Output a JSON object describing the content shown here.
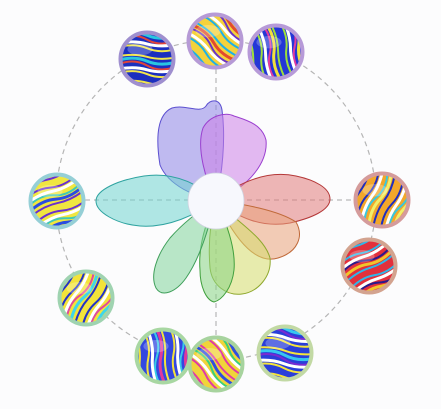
{
  "diagram": {
    "guide_ring_color": "#b5b5b5",
    "axis_color": "#a9a9a9",
    "hub_color": "#f7f8fd",
    "petals": [
      {
        "name": "petal-violet-upper-left",
        "fill": "#8c84e6",
        "stroke": "#5b4fd0",
        "opacity": 0.55
      },
      {
        "name": "petal-magenta-upper-right",
        "fill": "#cc7fe8",
        "stroke": "#9a3fcf",
        "opacity": 0.55
      },
      {
        "name": "petal-red-right",
        "fill": "#e07a7a",
        "stroke": "#b43838",
        "opacity": 0.55
      },
      {
        "name": "petal-orange-lower-right",
        "fill": "#e9a27a",
        "stroke": "#c06a3a",
        "opacity": 0.55
      },
      {
        "name": "petal-yellow-bottom",
        "fill": "#d6dc6c",
        "stroke": "#8fa82e",
        "opacity": 0.55
      },
      {
        "name": "petal-green-bottom",
        "fill": "#86d483",
        "stroke": "#3f9f3c",
        "opacity": 0.55
      },
      {
        "name": "petal-green-lower-left",
        "fill": "#7fd49a",
        "stroke": "#3f9f5a",
        "opacity": 0.55
      },
      {
        "name": "petal-cyan-left",
        "fill": "#6fd4cf",
        "stroke": "#2fa3a0",
        "opacity": 0.55
      }
    ],
    "nodes": [
      {
        "name": "node-thumbnail-1",
        "ring": "#9f8fcf",
        "c1": "#1b2fbf",
        "c2": "#f2e64a",
        "c3": "#29c6e0",
        "c4": "#e0443a"
      },
      {
        "name": "node-thumbnail-2",
        "ring": "#b69ad6",
        "c1": "#f4d23b",
        "c2": "#1fb0e6",
        "c3": "#e24a2f",
        "c4": "#6a33c8"
      },
      {
        "name": "node-thumbnail-3",
        "ring": "#b79ad8",
        "c1": "#2437d6",
        "c2": "#9de03a",
        "c3": "#f0e03c",
        "c4": "#e23aa0"
      },
      {
        "name": "node-thumbnail-4",
        "ring": "#d59b9b",
        "c1": "#f2a72a",
        "c2": "#1f2ec0",
        "c3": "#f0ef6a",
        "c4": "#39c7de"
      },
      {
        "name": "node-thumbnail-5",
        "ring": "#d3a38f",
        "c1": "#e2303c",
        "c2": "#2fb6e8",
        "c3": "#f1c52a",
        "c4": "#2a1a8a"
      },
      {
        "name": "node-thumbnail-6",
        "ring": "#c2d9a4",
        "c1": "#2a3fd9",
        "c2": "#f5e43a",
        "c3": "#36c7f0",
        "c4": "#7a2bd0"
      },
      {
        "name": "node-thumbnail-7",
        "ring": "#a7d39e",
        "c1": "#f0d43a",
        "c2": "#e03aa6",
        "c3": "#2f4fe0",
        "c4": "#3ad07a"
      },
      {
        "name": "node-thumbnail-8",
        "ring": "#a8d7a2",
        "c1": "#3348e0",
        "c2": "#f3e23c",
        "c3": "#e0389c",
        "c4": "#39c9e6"
      },
      {
        "name": "node-thumbnail-9",
        "ring": "#9fd3b0",
        "c1": "#f2e33a",
        "c2": "#2332c8",
        "c3": "#3fd6ea",
        "c4": "#e04a9c"
      },
      {
        "name": "node-thumbnail-10",
        "ring": "#95cfd6",
        "c1": "#f0e640",
        "c2": "#6a2fd0",
        "c3": "#2a4ce0",
        "c4": "#3ec9b8"
      }
    ]
  }
}
